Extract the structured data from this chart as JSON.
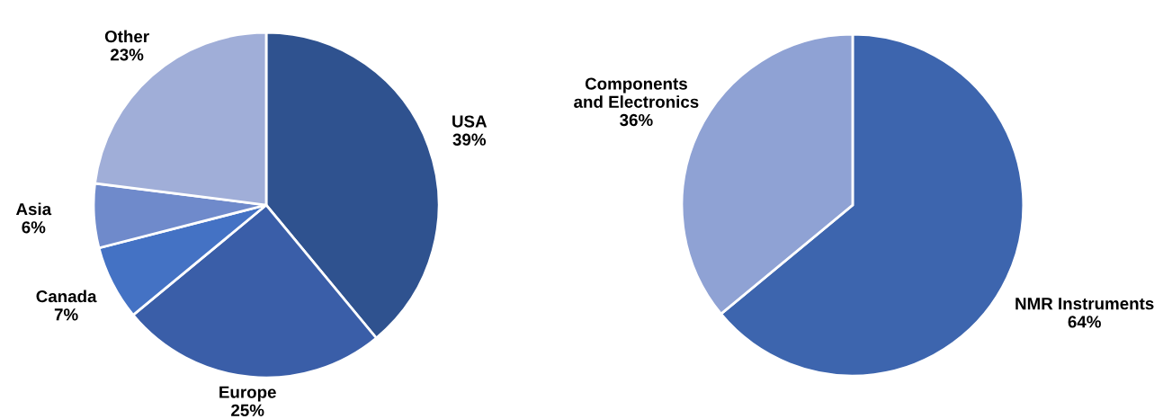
{
  "chart_data": [
    {
      "type": "pie",
      "categories": [
        "USA",
        "Europe",
        "Canada",
        "Asia",
        "Other"
      ],
      "values": [
        39,
        25,
        7,
        6,
        23
      ],
      "colors": [
        "#2f528f",
        "#3a5ea8",
        "#4472c4",
        "#6f8acb",
        "#a0aed8"
      ],
      "value_labels": [
        "39%",
        "25%",
        "7%",
        "6%",
        "23%"
      ],
      "legend": false
    },
    {
      "type": "pie",
      "categories": [
        "NMR Instruments",
        "Components\nand Electronics"
      ],
      "values": [
        64,
        36
      ],
      "colors": [
        "#3d65ae",
        "#8fa2d4"
      ],
      "value_labels": [
        "64%",
        "36%"
      ],
      "legend": false
    }
  ]
}
